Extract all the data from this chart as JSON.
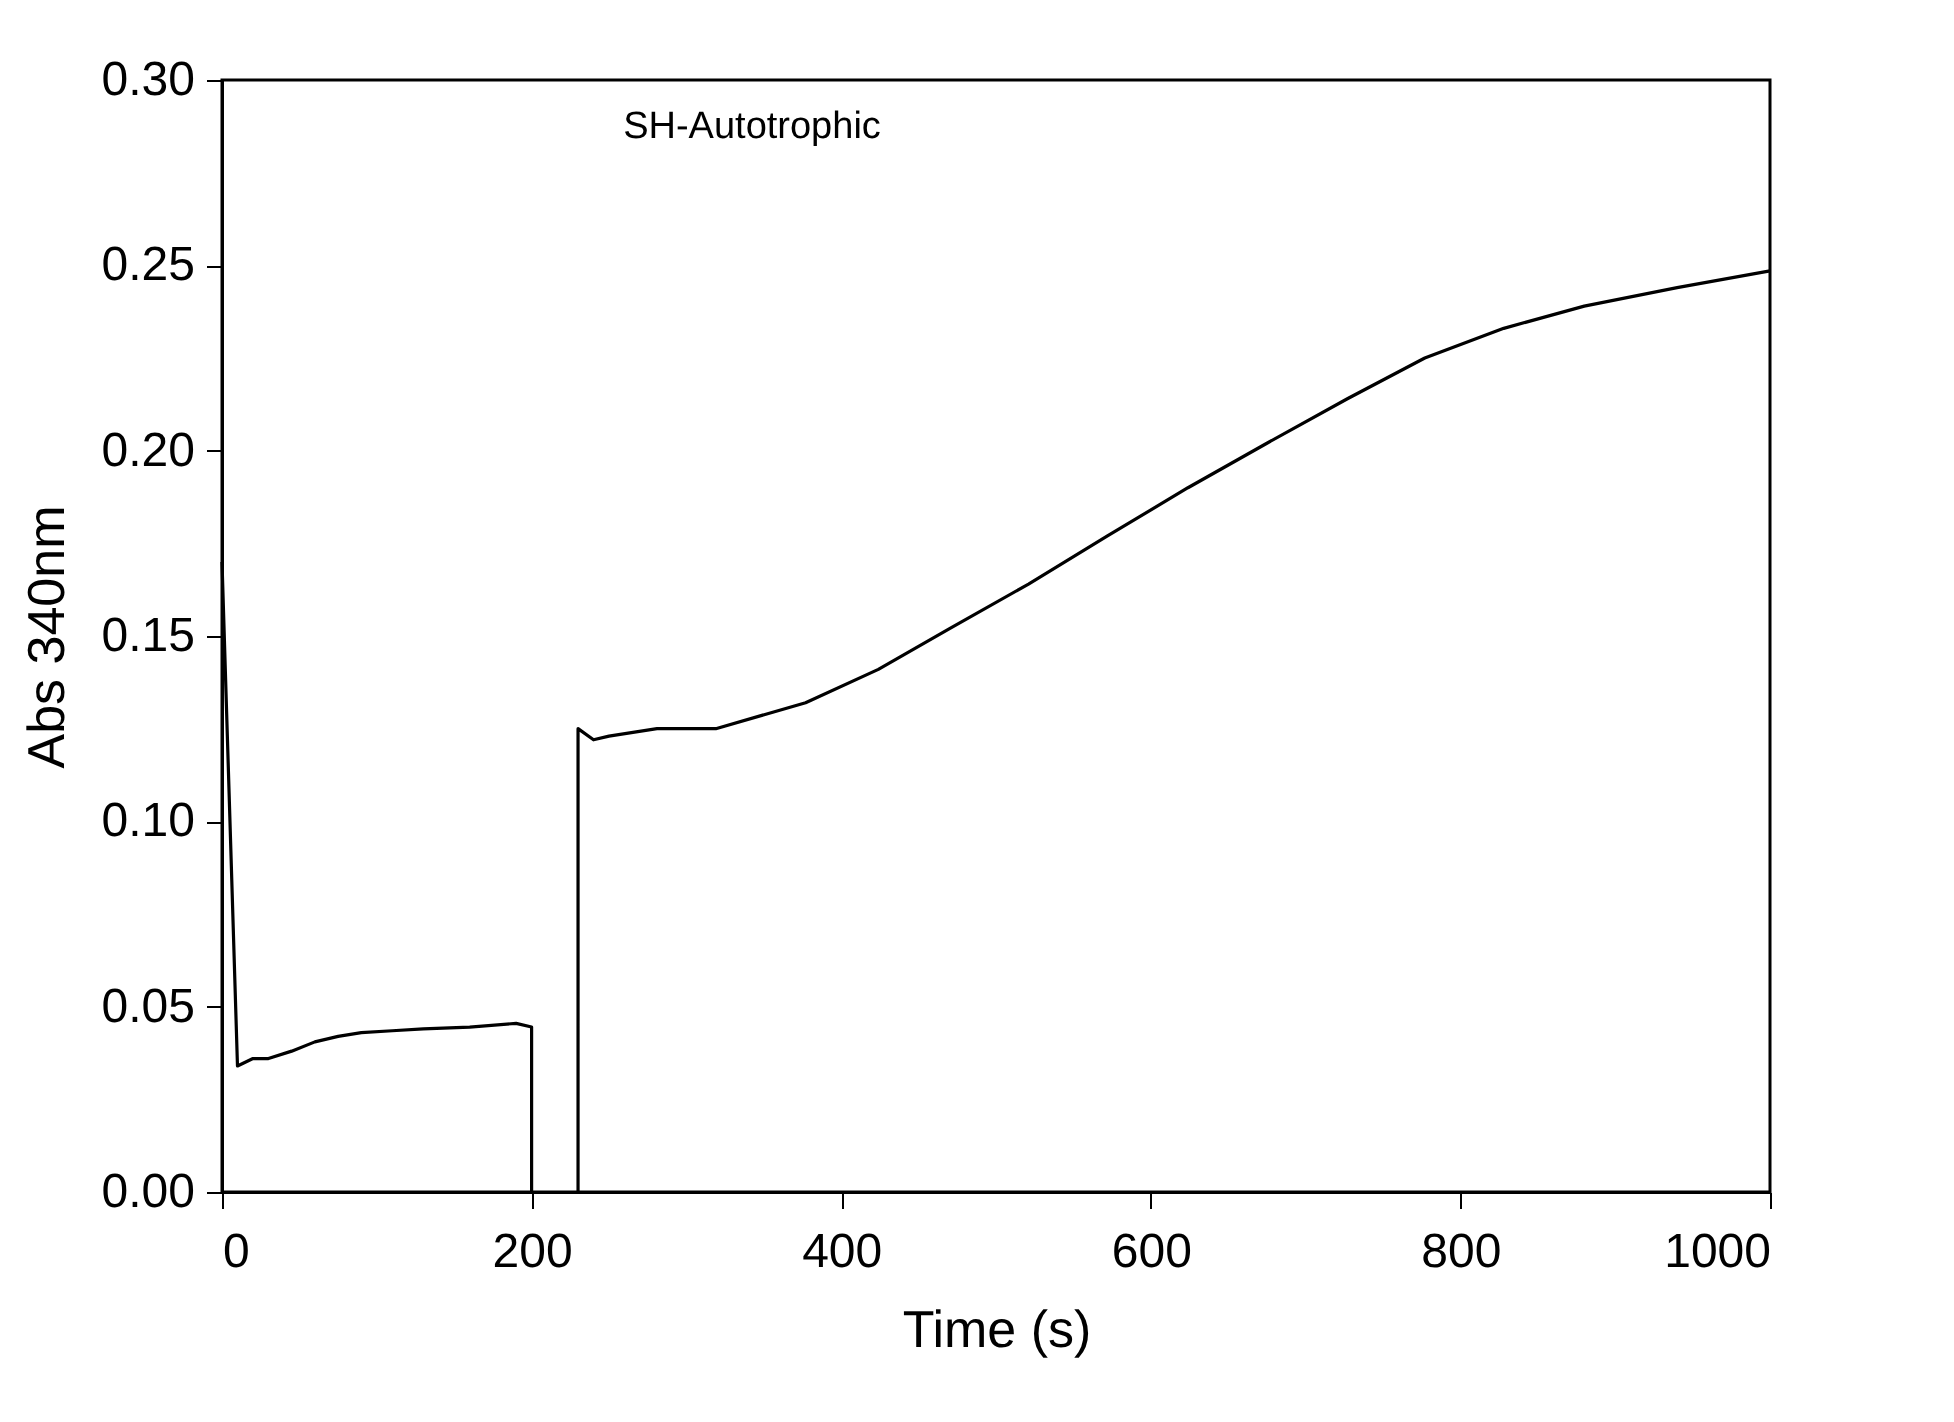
{
  "chart_data": {
    "type": "line",
    "xlabel": "Time (s)",
    "ylabel": "Abs 340nm",
    "annotations": [
      "SH-Autotrophic"
    ],
    "x": [
      0,
      10,
      20,
      30,
      45,
      60,
      75,
      90,
      110,
      130,
      160,
      190,
      200,
      200,
      215,
      230,
      230,
      240,
      250,
      281,
      319,
      377,
      424,
      470,
      521,
      572,
      624,
      675,
      727,
      777,
      828,
      880,
      940,
      1000
    ],
    "series": [
      {
        "color": "#000000",
        "values": [
          0.17,
          0.034,
          0.036,
          0.036,
          0.038,
          0.0405,
          0.042,
          0.043,
          0.0435,
          0.044,
          0.0445,
          0.0455,
          0.0445,
          0,
          null,
          0,
          0.125,
          0.122,
          0.123,
          0.125,
          0.125,
          0.132,
          0.141,
          0.152,
          0.164,
          0.177,
          0.19,
          0.202,
          0.214,
          0.225,
          0.233,
          0.239,
          0.244,
          0.2485
        ]
      }
    ],
    "xlim": [
      0,
      1000
    ],
    "xticks": [
      0,
      200,
      400,
      600,
      800,
      1000
    ],
    "ylim": [
      0,
      0.3
    ],
    "yticks": [
      {
        "value": 0,
        "label": "0.00"
      },
      {
        "value": 0.05,
        "label": "0.05"
      },
      {
        "value": 0.1,
        "label": "0.10"
      },
      {
        "value": 0.15,
        "label": "0.15"
      },
      {
        "value": 0.2,
        "label": "0.20"
      },
      {
        "value": 0.25,
        "label": "0.25"
      },
      {
        "value": 0.3,
        "label": "0.30"
      }
    ],
    "grid": false,
    "marker": "none",
    "line_style": "solid"
  }
}
